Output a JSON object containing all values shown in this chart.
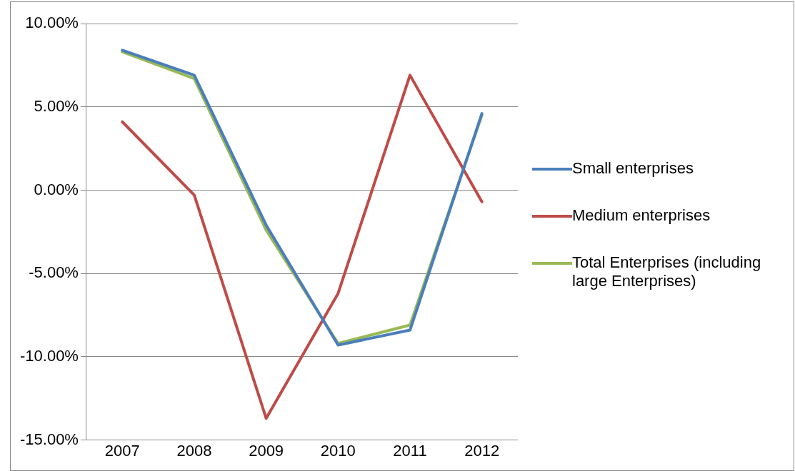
{
  "chart_data": {
    "type": "line",
    "categories": [
      "2007",
      "2008",
      "2009",
      "2010",
      "2011",
      "2012"
    ],
    "series": [
      {
        "name": "Small enterprises",
        "color": "#4a7ebb",
        "values": [
          8.4,
          6.9,
          -2.1,
          -9.3,
          -8.4,
          4.6
        ]
      },
      {
        "name": "Medium enterprises",
        "color": "#be4b48",
        "values": [
          4.1,
          -0.3,
          -13.7,
          -6.2,
          6.9,
          -0.7
        ]
      },
      {
        "name": "Total Enterprises (including large Enterprises)",
        "color": "#98b954",
        "values": [
          8.3,
          6.7,
          -2.4,
          -9.2,
          -8.1,
          4.5
        ]
      }
    ],
    "ylim": [
      -15,
      10
    ],
    "yticks": [
      {
        "value": -15,
        "label": "-15.00%"
      },
      {
        "value": -10,
        "label": "-10.00%"
      },
      {
        "value": -5,
        "label": "-5.00%"
      },
      {
        "value": 0,
        "label": "0.00%"
      },
      {
        "value": 5,
        "label": "5.00%"
      },
      {
        "value": 10,
        "label": "10.00%"
      }
    ],
    "grid": "y",
    "legend": "right",
    "marker": "none",
    "line_style": "solid"
  }
}
